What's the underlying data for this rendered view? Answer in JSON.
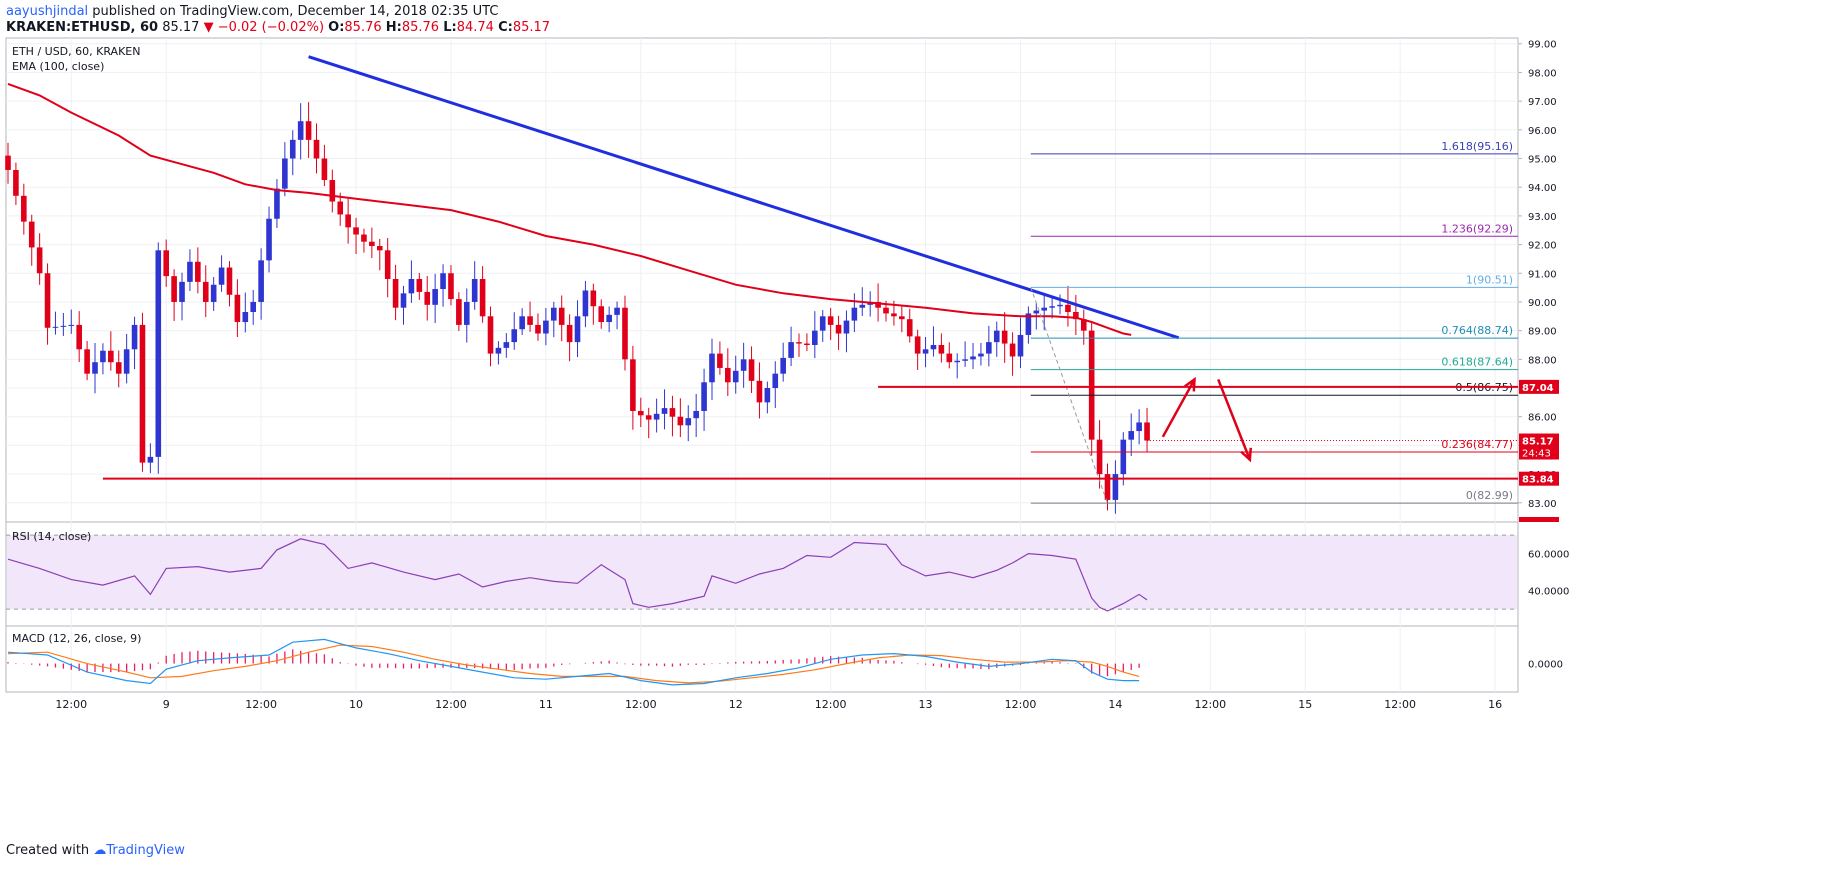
{
  "header": {
    "user": "aayushjindal",
    "published": " published on TradingView.com, December 14, 2018 02:35 UTC",
    "symbol": "KRAKEN:ETHUSD, 60",
    "last": "85.17",
    "change": "▼ −0.02 (−0.02%)",
    "o_label": "O:",
    "o": "85.76",
    "h_label": "H:",
    "h": "85.76",
    "l_label": "L:",
    "l": "84.74",
    "c_label": "C:",
    "c": "85.17"
  },
  "footer": {
    "created": "Created with",
    "brand": "TradingView"
  },
  "colors": {
    "up": "#2f35d0",
    "down": "#e0001a",
    "ema": "#e0001a",
    "trend": "#1f2fe0",
    "rsi_fill": "#f2e6fb",
    "rsi_line": "#8b3fb5",
    "macd": "#2196f3",
    "signal": "#ff7b1a",
    "hist_pos": "#e91e63"
  },
  "chart_data": [
    {
      "type": "candlestick",
      "title": "ETH / USD, 60, KRAKEN",
      "indicator": "EMA (100, close)",
      "ylim": [
        82.4,
        99.2
      ],
      "yticks": [
        "83.00",
        "84.00",
        "85.00",
        "86.00",
        "87.00",
        "88.00",
        "89.00",
        "90.00",
        "91.00",
        "92.00",
        "93.00",
        "94.00",
        "95.00",
        "96.00",
        "97.00",
        "98.00",
        "99.00"
      ],
      "xticks": [
        {
          "label": "12:00",
          "i": 8
        },
        {
          "label": "9",
          "i": 20
        },
        {
          "label": "12:00",
          "i": 32
        },
        {
          "label": "10",
          "i": 44
        },
        {
          "label": "12:00",
          "i": 56
        },
        {
          "label": "11",
          "i": 68
        },
        {
          "label": "12:00",
          "i": 80
        },
        {
          "label": "12",
          "i": 92
        },
        {
          "label": "12:00",
          "i": 104
        },
        {
          "label": "13",
          "i": 116
        },
        {
          "label": "12:00",
          "i": 128
        },
        {
          "label": "14",
          "i": 140
        },
        {
          "label": "12:00",
          "i": 152
        },
        {
          "label": "15",
          "i": 164
        },
        {
          "label": "12:00",
          "i": 176
        },
        {
          "label": "16",
          "i": 188
        }
      ],
      "price_path": [
        [
          0,
          94.6
        ],
        [
          2,
          92.8
        ],
        [
          4,
          91.0
        ],
        [
          5,
          89.1
        ],
        [
          8,
          89.2
        ],
        [
          10,
          87.5
        ],
        [
          12,
          88.3
        ],
        [
          14,
          87.5
        ],
        [
          16,
          89.2
        ],
        [
          17,
          84.4
        ],
        [
          18,
          84.6
        ],
        [
          19,
          91.8
        ],
        [
          21,
          90.0
        ],
        [
          23,
          91.4
        ],
        [
          25,
          90.0
        ],
        [
          27,
          91.2
        ],
        [
          29,
          89.3
        ],
        [
          31,
          90.0
        ],
        [
          33,
          92.9
        ],
        [
          35,
          95.0
        ],
        [
          37,
          96.3
        ],
        [
          39,
          95.0
        ],
        [
          41,
          93.5
        ],
        [
          43,
          92.6
        ],
        [
          45,
          92.1
        ],
        [
          47,
          91.8
        ],
        [
          49,
          89.8
        ],
        [
          51,
          90.8
        ],
        [
          53,
          89.9
        ],
        [
          55,
          91.0
        ],
        [
          57,
          89.2
        ],
        [
          59,
          90.8
        ],
        [
          61,
          88.2
        ],
        [
          63,
          88.6
        ],
        [
          65,
          89.5
        ],
        [
          67,
          88.9
        ],
        [
          69,
          89.8
        ],
        [
          71,
          88.6
        ],
        [
          73,
          90.4
        ],
        [
          75,
          89.3
        ],
        [
          77,
          89.8
        ],
        [
          79,
          86.2
        ],
        [
          81,
          85.9
        ],
        [
          83,
          86.3
        ],
        [
          85,
          85.7
        ],
        [
          87,
          86.2
        ],
        [
          89,
          88.2
        ],
        [
          91,
          87.2
        ],
        [
          93,
          88.0
        ],
        [
          95,
          86.5
        ],
        [
          97,
          87.5
        ],
        [
          99,
          88.6
        ],
        [
          101,
          88.5
        ],
        [
          103,
          89.5
        ],
        [
          105,
          88.9
        ],
        [
          107,
          89.8
        ],
        [
          109,
          90.0
        ],
        [
          111,
          89.6
        ],
        [
          113,
          89.4
        ],
        [
          115,
          88.2
        ],
        [
          117,
          88.5
        ],
        [
          119,
          87.9
        ],
        [
          121,
          88.0
        ],
        [
          123,
          88.2
        ],
        [
          125,
          89.0
        ],
        [
          127,
          88.1
        ],
        [
          129,
          89.6
        ],
        [
          131,
          89.8
        ],
        [
          133,
          89.9
        ],
        [
          135,
          89.4
        ],
        [
          136,
          89.0
        ],
        [
          137,
          85.2
        ],
        [
          138,
          84.0
        ],
        [
          139,
          83.1
        ],
        [
          140,
          84.0
        ],
        [
          141,
          85.2
        ],
        [
          142,
          85.5
        ],
        [
          143,
          85.8
        ],
        [
          144,
          85.17
        ]
      ],
      "ema_path": [
        [
          0,
          97.6
        ],
        [
          4,
          97.2
        ],
        [
          8,
          96.6
        ],
        [
          14,
          95.8
        ],
        [
          18,
          95.1
        ],
        [
          22,
          94.8
        ],
        [
          26,
          94.5
        ],
        [
          30,
          94.1
        ],
        [
          34,
          93.9
        ],
        [
          38,
          93.8
        ],
        [
          44,
          93.6
        ],
        [
          50,
          93.4
        ],
        [
          56,
          93.2
        ],
        [
          62,
          92.8
        ],
        [
          68,
          92.3
        ],
        [
          74,
          92.0
        ],
        [
          80,
          91.6
        ],
        [
          86,
          91.1
        ],
        [
          92,
          90.6
        ],
        [
          98,
          90.3
        ],
        [
          104,
          90.1
        ],
        [
          110,
          89.95
        ],
        [
          116,
          89.8
        ],
        [
          122,
          89.6
        ],
        [
          128,
          89.5
        ],
        [
          132,
          89.5
        ],
        [
          135,
          89.45
        ],
        [
          137,
          89.3
        ],
        [
          139,
          89.1
        ],
        [
          141,
          88.9
        ],
        [
          142,
          88.85
        ]
      ],
      "trendline": [
        [
          38,
          98.55
        ],
        [
          148,
          88.75
        ]
      ],
      "support_lines": [
        {
          "y": 83.84,
          "from": 12,
          "label": "83.84"
        },
        {
          "y": 87.04,
          "from": 110,
          "label": "87.04"
        }
      ],
      "current_price": {
        "y": 85.17,
        "label": "85.17",
        "countdown": "24:43"
      },
      "fib_levels": [
        {
          "ratio": "0(82.99)",
          "y": 82.99,
          "color": "#787b86"
        },
        {
          "ratio": "0.236(84.77)",
          "y": 84.77,
          "color": "#e0001a"
        },
        {
          "ratio": "0.5(86.75)",
          "y": 86.75,
          "color": "#131722"
        },
        {
          "ratio": "0.618(87.64)",
          "y": 87.64,
          "color": "#22ab94"
        },
        {
          "ratio": "0.764(88.74)",
          "y": 88.74,
          "color": "#1f8fb5"
        },
        {
          "ratio": "1(90.51)",
          "y": 90.51,
          "color": "#63aee8"
        },
        {
          "ratio": "1.236(92.29)",
          "y": 92.29,
          "color": "#9c27b0"
        },
        {
          "ratio": "1.618(95.16)",
          "y": 95.16,
          "color": "#3a3fb5"
        }
      ],
      "arrows": [
        {
          "from": [
            146,
            85.3
          ],
          "to": [
            150,
            87.3
          ],
          "color": "#e0001a"
        },
        {
          "from": [
            153,
            87.3
          ],
          "to": [
            157,
            84.5
          ],
          "color": "#e0001a"
        }
      ]
    },
    {
      "type": "line",
      "title": "RSI (14, close)",
      "ylim": [
        22,
        76
      ],
      "bands": [
        30,
        70
      ],
      "yticks": [
        "40.0000",
        "60.0000"
      ],
      "path": [
        [
          0,
          57
        ],
        [
          4,
          52
        ],
        [
          8,
          46
        ],
        [
          12,
          43
        ],
        [
          16,
          48
        ],
        [
          18,
          38
        ],
        [
          20,
          52
        ],
        [
          24,
          53
        ],
        [
          28,
          50
        ],
        [
          32,
          52
        ],
        [
          34,
          62
        ],
        [
          37,
          68
        ],
        [
          40,
          65
        ],
        [
          43,
          52
        ],
        [
          46,
          55
        ],
        [
          50,
          50
        ],
        [
          54,
          46
        ],
        [
          57,
          49
        ],
        [
          60,
          42
        ],
        [
          63,
          45
        ],
        [
          66,
          47
        ],
        [
          69,
          45
        ],
        [
          72,
          44
        ],
        [
          75,
          54
        ],
        [
          78,
          46
        ],
        [
          79,
          33
        ],
        [
          81,
          31
        ],
        [
          84,
          33
        ],
        [
          88,
          37
        ],
        [
          89,
          48
        ],
        [
          92,
          44
        ],
        [
          95,
          49
        ],
        [
          98,
          52
        ],
        [
          101,
          59
        ],
        [
          104,
          58
        ],
        [
          107,
          66
        ],
        [
          111,
          65
        ],
        [
          113,
          54
        ],
        [
          116,
          48
        ],
        [
          119,
          50
        ],
        [
          122,
          47
        ],
        [
          125,
          51
        ],
        [
          127,
          55
        ],
        [
          129,
          60
        ],
        [
          132,
          59
        ],
        [
          135,
          57
        ],
        [
          137,
          36
        ],
        [
          138,
          31
        ],
        [
          139,
          29
        ],
        [
          141,
          33
        ],
        [
          143,
          38
        ],
        [
          144,
          35
        ]
      ]
    },
    {
      "type": "line",
      "title": "MACD (12, 26, close, 9)",
      "ylim": [
        -1.0,
        1.25
      ],
      "yticks": [
        "0.0000"
      ],
      "macd": [
        [
          0,
          0.4
        ],
        [
          5,
          0.3
        ],
        [
          10,
          -0.3
        ],
        [
          15,
          -0.6
        ],
        [
          18,
          -0.7
        ],
        [
          20,
          -0.2
        ],
        [
          24,
          0.1
        ],
        [
          28,
          0.2
        ],
        [
          33,
          0.3
        ],
        [
          36,
          0.75
        ],
        [
          40,
          0.85
        ],
        [
          44,
          0.55
        ],
        [
          48,
          0.35
        ],
        [
          52,
          0.1
        ],
        [
          56,
          -0.1
        ],
        [
          60,
          -0.3
        ],
        [
          64,
          -0.5
        ],
        [
          68,
          -0.55
        ],
        [
          72,
          -0.45
        ],
        [
          76,
          -0.35
        ],
        [
          80,
          -0.6
        ],
        [
          84,
          -0.75
        ],
        [
          88,
          -0.7
        ],
        [
          92,
          -0.5
        ],
        [
          96,
          -0.35
        ],
        [
          100,
          -0.15
        ],
        [
          104,
          0.15
        ],
        [
          108,
          0.3
        ],
        [
          112,
          0.35
        ],
        [
          116,
          0.25
        ],
        [
          120,
          0.05
        ],
        [
          124,
          -0.1
        ],
        [
          128,
          0.0
        ],
        [
          132,
          0.15
        ],
        [
          135,
          0.1
        ],
        [
          137,
          -0.3
        ],
        [
          139,
          -0.55
        ],
        [
          141,
          -0.6
        ],
        [
          143,
          -0.6
        ]
      ],
      "signal": [
        [
          0,
          0.35
        ],
        [
          5,
          0.4
        ],
        [
          10,
          0.0
        ],
        [
          15,
          -0.3
        ],
        [
          18,
          -0.5
        ],
        [
          22,
          -0.45
        ],
        [
          26,
          -0.25
        ],
        [
          30,
          -0.1
        ],
        [
          34,
          0.1
        ],
        [
          38,
          0.4
        ],
        [
          42,
          0.65
        ],
        [
          46,
          0.6
        ],
        [
          50,
          0.4
        ],
        [
          54,
          0.15
        ],
        [
          58,
          -0.05
        ],
        [
          62,
          -0.2
        ],
        [
          66,
          -0.35
        ],
        [
          70,
          -0.45
        ],
        [
          74,
          -0.45
        ],
        [
          78,
          -0.45
        ],
        [
          82,
          -0.6
        ],
        [
          86,
          -0.68
        ],
        [
          90,
          -0.62
        ],
        [
          94,
          -0.5
        ],
        [
          98,
          -0.38
        ],
        [
          102,
          -0.22
        ],
        [
          106,
          0.0
        ],
        [
          110,
          0.2
        ],
        [
          114,
          0.3
        ],
        [
          118,
          0.28
        ],
        [
          122,
          0.15
        ],
        [
          126,
          0.05
        ],
        [
          130,
          0.05
        ],
        [
          134,
          0.1
        ],
        [
          137,
          0.05
        ],
        [
          139,
          -0.1
        ],
        [
          141,
          -0.3
        ],
        [
          143,
          -0.45
        ]
      ]
    }
  ]
}
